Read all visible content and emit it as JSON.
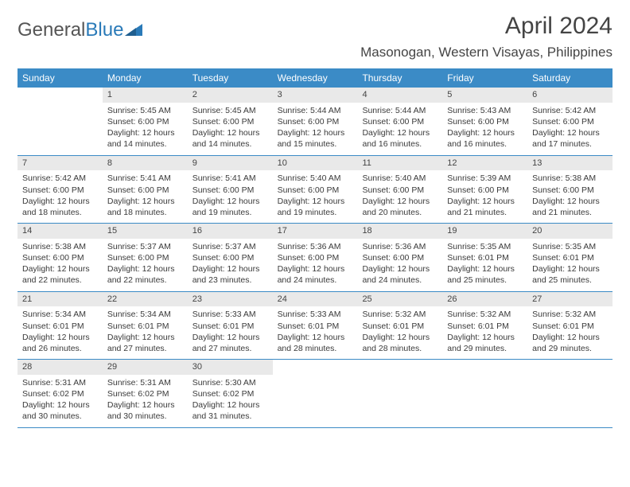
{
  "logo": {
    "part1": "General",
    "part2": "Blue"
  },
  "title": "April 2024",
  "location": "Masonogan, Western Visayas, Philippines",
  "colors": {
    "header_bg": "#3b8bc6",
    "header_text": "#ffffff",
    "daynum_bg": "#e9e9e9",
    "border": "#3b8bc6",
    "text": "#3a3a3a",
    "logo_blue": "#2a7ab8"
  },
  "day_names": [
    "Sunday",
    "Monday",
    "Tuesday",
    "Wednesday",
    "Thursday",
    "Friday",
    "Saturday"
  ],
  "weeks": [
    [
      {
        "n": "",
        "sr": "",
        "ss": "",
        "dl": ""
      },
      {
        "n": "1",
        "sr": "Sunrise: 5:45 AM",
        "ss": "Sunset: 6:00 PM",
        "dl": "Daylight: 12 hours and 14 minutes."
      },
      {
        "n": "2",
        "sr": "Sunrise: 5:45 AM",
        "ss": "Sunset: 6:00 PM",
        "dl": "Daylight: 12 hours and 14 minutes."
      },
      {
        "n": "3",
        "sr": "Sunrise: 5:44 AM",
        "ss": "Sunset: 6:00 PM",
        "dl": "Daylight: 12 hours and 15 minutes."
      },
      {
        "n": "4",
        "sr": "Sunrise: 5:44 AM",
        "ss": "Sunset: 6:00 PM",
        "dl": "Daylight: 12 hours and 16 minutes."
      },
      {
        "n": "5",
        "sr": "Sunrise: 5:43 AM",
        "ss": "Sunset: 6:00 PM",
        "dl": "Daylight: 12 hours and 16 minutes."
      },
      {
        "n": "6",
        "sr": "Sunrise: 5:42 AM",
        "ss": "Sunset: 6:00 PM",
        "dl": "Daylight: 12 hours and 17 minutes."
      }
    ],
    [
      {
        "n": "7",
        "sr": "Sunrise: 5:42 AM",
        "ss": "Sunset: 6:00 PM",
        "dl": "Daylight: 12 hours and 18 minutes."
      },
      {
        "n": "8",
        "sr": "Sunrise: 5:41 AM",
        "ss": "Sunset: 6:00 PM",
        "dl": "Daylight: 12 hours and 18 minutes."
      },
      {
        "n": "9",
        "sr": "Sunrise: 5:41 AM",
        "ss": "Sunset: 6:00 PM",
        "dl": "Daylight: 12 hours and 19 minutes."
      },
      {
        "n": "10",
        "sr": "Sunrise: 5:40 AM",
        "ss": "Sunset: 6:00 PM",
        "dl": "Daylight: 12 hours and 19 minutes."
      },
      {
        "n": "11",
        "sr": "Sunrise: 5:40 AM",
        "ss": "Sunset: 6:00 PM",
        "dl": "Daylight: 12 hours and 20 minutes."
      },
      {
        "n": "12",
        "sr": "Sunrise: 5:39 AM",
        "ss": "Sunset: 6:00 PM",
        "dl": "Daylight: 12 hours and 21 minutes."
      },
      {
        "n": "13",
        "sr": "Sunrise: 5:38 AM",
        "ss": "Sunset: 6:00 PM",
        "dl": "Daylight: 12 hours and 21 minutes."
      }
    ],
    [
      {
        "n": "14",
        "sr": "Sunrise: 5:38 AM",
        "ss": "Sunset: 6:00 PM",
        "dl": "Daylight: 12 hours and 22 minutes."
      },
      {
        "n": "15",
        "sr": "Sunrise: 5:37 AM",
        "ss": "Sunset: 6:00 PM",
        "dl": "Daylight: 12 hours and 22 minutes."
      },
      {
        "n": "16",
        "sr": "Sunrise: 5:37 AM",
        "ss": "Sunset: 6:00 PM",
        "dl": "Daylight: 12 hours and 23 minutes."
      },
      {
        "n": "17",
        "sr": "Sunrise: 5:36 AM",
        "ss": "Sunset: 6:00 PM",
        "dl": "Daylight: 12 hours and 24 minutes."
      },
      {
        "n": "18",
        "sr": "Sunrise: 5:36 AM",
        "ss": "Sunset: 6:00 PM",
        "dl": "Daylight: 12 hours and 24 minutes."
      },
      {
        "n": "19",
        "sr": "Sunrise: 5:35 AM",
        "ss": "Sunset: 6:01 PM",
        "dl": "Daylight: 12 hours and 25 minutes."
      },
      {
        "n": "20",
        "sr": "Sunrise: 5:35 AM",
        "ss": "Sunset: 6:01 PM",
        "dl": "Daylight: 12 hours and 25 minutes."
      }
    ],
    [
      {
        "n": "21",
        "sr": "Sunrise: 5:34 AM",
        "ss": "Sunset: 6:01 PM",
        "dl": "Daylight: 12 hours and 26 minutes."
      },
      {
        "n": "22",
        "sr": "Sunrise: 5:34 AM",
        "ss": "Sunset: 6:01 PM",
        "dl": "Daylight: 12 hours and 27 minutes."
      },
      {
        "n": "23",
        "sr": "Sunrise: 5:33 AM",
        "ss": "Sunset: 6:01 PM",
        "dl": "Daylight: 12 hours and 27 minutes."
      },
      {
        "n": "24",
        "sr": "Sunrise: 5:33 AM",
        "ss": "Sunset: 6:01 PM",
        "dl": "Daylight: 12 hours and 28 minutes."
      },
      {
        "n": "25",
        "sr": "Sunrise: 5:32 AM",
        "ss": "Sunset: 6:01 PM",
        "dl": "Daylight: 12 hours and 28 minutes."
      },
      {
        "n": "26",
        "sr": "Sunrise: 5:32 AM",
        "ss": "Sunset: 6:01 PM",
        "dl": "Daylight: 12 hours and 29 minutes."
      },
      {
        "n": "27",
        "sr": "Sunrise: 5:32 AM",
        "ss": "Sunset: 6:01 PM",
        "dl": "Daylight: 12 hours and 29 minutes."
      }
    ],
    [
      {
        "n": "28",
        "sr": "Sunrise: 5:31 AM",
        "ss": "Sunset: 6:02 PM",
        "dl": "Daylight: 12 hours and 30 minutes."
      },
      {
        "n": "29",
        "sr": "Sunrise: 5:31 AM",
        "ss": "Sunset: 6:02 PM",
        "dl": "Daylight: 12 hours and 30 minutes."
      },
      {
        "n": "30",
        "sr": "Sunrise: 5:30 AM",
        "ss": "Sunset: 6:02 PM",
        "dl": "Daylight: 12 hours and 31 minutes."
      },
      {
        "n": "",
        "sr": "",
        "ss": "",
        "dl": ""
      },
      {
        "n": "",
        "sr": "",
        "ss": "",
        "dl": ""
      },
      {
        "n": "",
        "sr": "",
        "ss": "",
        "dl": ""
      },
      {
        "n": "",
        "sr": "",
        "ss": "",
        "dl": ""
      }
    ]
  ]
}
